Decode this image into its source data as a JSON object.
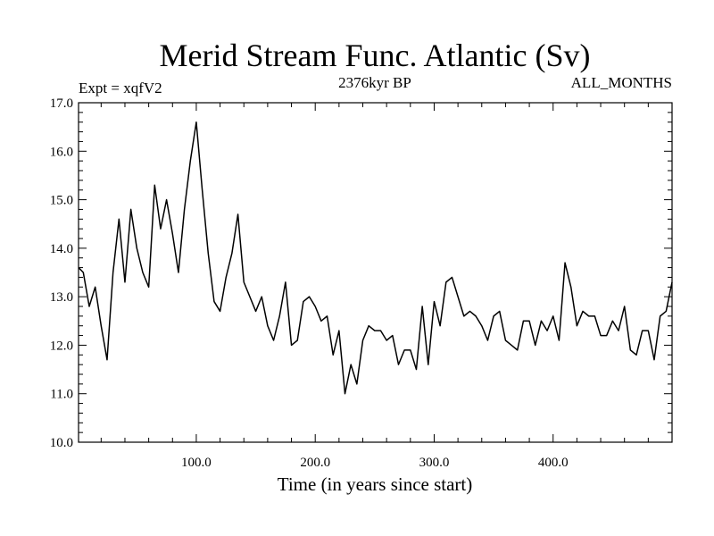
{
  "chart_data": {
    "type": "line",
    "title": "Merid Stream Func. Atlantic (Sv)",
    "subtitle_left": "Expt = xqfV2",
    "subtitle_center": "2376kyr BP",
    "subtitle_right": "ALL_MONTHS",
    "xlabel": "Time (in years since start)",
    "ylabel": "",
    "xlim": [
      1,
      500
    ],
    "ylim": [
      10.0,
      17.0
    ],
    "xticks": [
      100,
      200,
      300,
      400
    ],
    "xtick_labels": [
      "100.0",
      "200.0",
      "300.0",
      "400.0"
    ],
    "yticks": [
      10,
      11,
      12,
      13,
      14,
      15,
      16,
      17
    ],
    "ytick_labels": [
      "10.0",
      "11.0",
      "12.0",
      "13.0",
      "14.0",
      "15.0",
      "16.0",
      "17.0"
    ],
    "grid": false,
    "series": [
      {
        "name": "Merid Stream Func. Atlantic",
        "color": "#000000",
        "x": [
          1,
          5,
          10,
          15,
          20,
          25,
          30,
          35,
          40,
          45,
          50,
          55,
          60,
          65,
          70,
          75,
          80,
          85,
          90,
          95,
          100,
          105,
          110,
          115,
          120,
          125,
          130,
          135,
          140,
          145,
          150,
          155,
          160,
          165,
          170,
          175,
          180,
          185,
          190,
          195,
          200,
          205,
          210,
          215,
          220,
          225,
          230,
          235,
          240,
          245,
          250,
          255,
          260,
          265,
          270,
          275,
          280,
          285,
          290,
          295,
          300,
          305,
          310,
          315,
          320,
          325,
          330,
          335,
          340,
          345,
          350,
          355,
          360,
          365,
          370,
          375,
          380,
          385,
          390,
          395,
          400,
          405,
          410,
          415,
          420,
          425,
          430,
          435,
          440,
          445,
          450,
          455,
          460,
          465,
          470,
          475,
          480,
          485,
          490,
          495,
          500
        ],
        "values": [
          13.6,
          13.5,
          12.8,
          13.2,
          12.4,
          11.7,
          13.5,
          14.6,
          13.3,
          14.8,
          14.0,
          13.5,
          13.2,
          15.3,
          14.4,
          15.0,
          14.3,
          13.5,
          14.8,
          15.8,
          16.6,
          15.2,
          13.9,
          12.9,
          12.7,
          13.4,
          13.9,
          14.7,
          13.3,
          13.0,
          12.7,
          13.0,
          12.4,
          12.1,
          12.6,
          13.3,
          12.0,
          12.1,
          12.9,
          13.0,
          12.8,
          12.5,
          12.6,
          11.8,
          12.3,
          11.0,
          11.6,
          11.2,
          12.1,
          12.4,
          12.3,
          12.3,
          12.1,
          12.2,
          11.6,
          11.9,
          11.9,
          11.5,
          12.8,
          11.6,
          12.9,
          12.4,
          13.3,
          13.4,
          13.0,
          12.6,
          12.7,
          12.6,
          12.4,
          12.1,
          12.6,
          12.7,
          12.1,
          12.0,
          11.9,
          12.5,
          12.5,
          12.0,
          12.5,
          12.3,
          12.6,
          12.1,
          13.7,
          13.2,
          12.4,
          12.7,
          12.6,
          12.6,
          12.2,
          12.2,
          12.5,
          12.3,
          12.8,
          11.9,
          11.8,
          12.3,
          12.3,
          11.7,
          12.6,
          12.7,
          13.3
        ]
      }
    ]
  }
}
